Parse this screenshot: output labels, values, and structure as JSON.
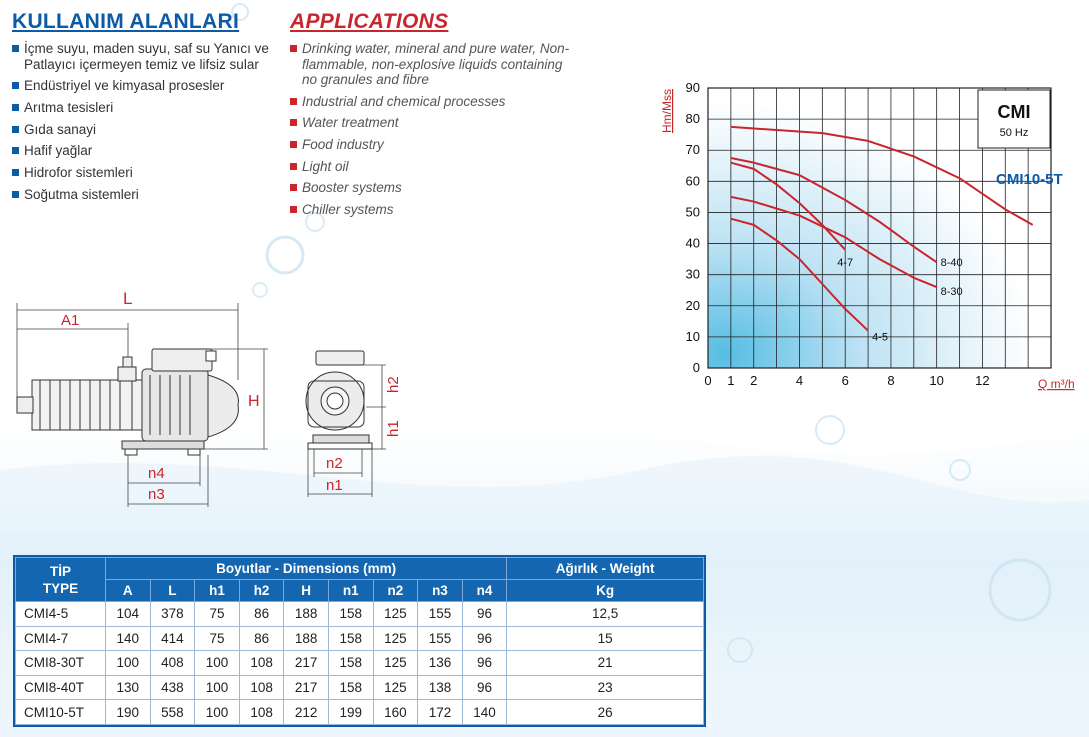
{
  "headings": {
    "turkish": "KULLANIM ALANLARI",
    "english": "APPLICATIONS"
  },
  "uses_tr": [
    "İçme suyu, maden suyu, saf su Yanıcı ve Patlayıcı içermeyen temiz ve lifsiz sular",
    "Endüstriyel ve kimyasal prosesler",
    "Arıtma tesisleri",
    "Gıda sanayi",
    "Hafif yağlar",
    "Hidrofor sistemleri",
    "Soğutma sistemleri"
  ],
  "uses_en": [
    "Drinking water, mineral and pure water, Non-flammable, non-explosive liquids containing no granules and fibre",
    "Industrial and chemical processes",
    "Water treatment",
    "Food industry",
    "Light oil",
    "Booster systems",
    "Chiller systems"
  ],
  "drawing_labels": {
    "L": "L",
    "A1": "A1",
    "H": "H",
    "n4": "n4",
    "n3": "n3",
    "h2": "h2",
    "h1": "h1",
    "n2": "n2",
    "n1": "n1"
  },
  "chart_data": {
    "type": "line",
    "title": "CMI",
    "subtitle": "50 Hz",
    "ylabel": "Hm/Mss",
    "xlabel": "Q m³/h",
    "xlim": [
      0,
      15
    ],
    "ylim": [
      0,
      90
    ],
    "xticks": [
      0,
      1,
      2,
      4,
      6,
      8,
      10,
      12
    ],
    "yticks": [
      0,
      10,
      20,
      30,
      40,
      50,
      60,
      70,
      80,
      90
    ],
    "grid": true,
    "series": [
      {
        "name": "CMI10-5T",
        "points": [
          [
            1,
            77.5
          ],
          [
            3,
            76.5
          ],
          [
            5,
            75.5
          ],
          [
            7,
            73
          ],
          [
            9,
            68
          ],
          [
            11,
            61
          ],
          [
            13,
            51
          ],
          [
            14.2,
            46
          ]
        ]
      },
      {
        "name": "8-40",
        "points": [
          [
            1,
            67.5
          ],
          [
            2,
            66
          ],
          [
            4,
            62
          ],
          [
            6,
            54
          ],
          [
            7.5,
            47
          ],
          [
            9,
            39
          ],
          [
            10,
            34
          ]
        ]
      },
      {
        "name": "8-30",
        "points": [
          [
            1,
            55
          ],
          [
            2,
            53.5
          ],
          [
            4,
            49
          ],
          [
            6,
            42
          ],
          [
            7.5,
            35
          ],
          [
            9,
            29
          ],
          [
            10,
            26
          ]
        ]
      },
      {
        "name": "4-7",
        "points": [
          [
            1,
            66
          ],
          [
            2,
            64
          ],
          [
            3,
            59
          ],
          [
            4,
            53
          ],
          [
            5,
            46
          ],
          [
            6,
            38
          ]
        ]
      },
      {
        "name": "4-5",
        "points": [
          [
            1,
            48
          ],
          [
            2,
            46
          ],
          [
            3,
            41
          ],
          [
            4,
            35
          ],
          [
            5,
            27
          ],
          [
            6,
            19
          ],
          [
            7,
            12
          ]
        ]
      }
    ]
  },
  "table": {
    "header_tip": "TİP",
    "header_type": "TYPE",
    "header_dims": "Boyutlar -  Dimensions (mm)",
    "header_weight": "Ağırlık - Weight",
    "columns": [
      "A",
      "L",
      "h1",
      "h2",
      "H",
      "n1",
      "n2",
      "n3",
      "n4"
    ],
    "weight_unit": "Kg",
    "rows": [
      {
        "type": "CMI4-5",
        "values": [
          "104",
          "378",
          "75",
          "86",
          "188",
          "158",
          "125",
          "155",
          "96"
        ],
        "weight": "12,5"
      },
      {
        "type": "CMI4-7",
        "values": [
          "140",
          "414",
          "75",
          "86",
          "188",
          "158",
          "125",
          "155",
          "96"
        ],
        "weight": "15"
      },
      {
        "type": "CMI8-30T",
        "values": [
          "100",
          "408",
          "100",
          "108",
          "217",
          "158",
          "125",
          "136",
          "96"
        ],
        "weight": "21"
      },
      {
        "type": "CMI8-40T",
        "values": [
          "130",
          "438",
          "100",
          "108",
          "217",
          "158",
          "125",
          "138",
          "96"
        ],
        "weight": "23"
      },
      {
        "type": "CMI10-5T",
        "values": [
          "190",
          "558",
          "100",
          "108",
          "212",
          "199",
          "160",
          "172",
          "140"
        ],
        "weight": "26"
      }
    ]
  },
  "colors": {
    "blue": "#0d5aa6",
    "red": "#c8262c",
    "table_header": "#1466b0"
  }
}
